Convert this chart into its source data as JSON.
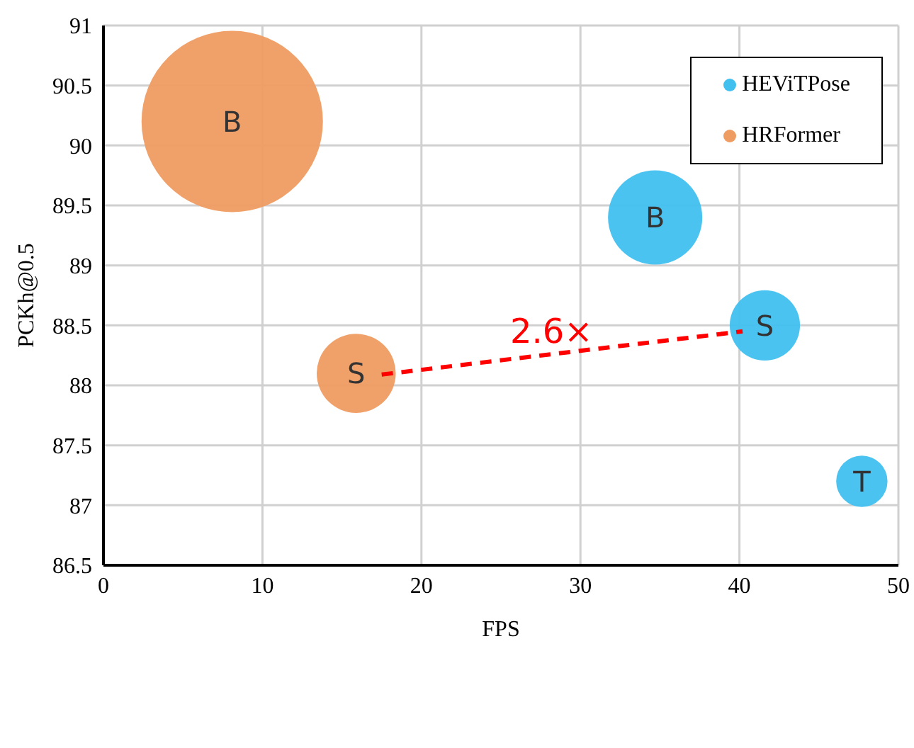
{
  "chart_data": {
    "type": "bubble",
    "xlabel": "FPS",
    "ylabel": "PCKh@0.5",
    "xlim": [
      0,
      50
    ],
    "xticks": [
      0,
      10,
      20,
      30,
      40,
      50
    ],
    "ylim": [
      86.5,
      91
    ],
    "yticks": [
      86.5,
      87,
      87.5,
      88,
      88.5,
      89,
      89.5,
      90,
      90.5,
      91
    ],
    "grid": true,
    "legend": "top right",
    "series": [
      {
        "name": "HEViTPose",
        "color": "#41c0f0",
        "x": [
          34.7,
          41.6,
          47.7
        ],
        "values": [
          89.4,
          88.5,
          87.2
        ],
        "sizes": [
          0.27,
          0.15,
          0.08
        ],
        "value_labels": [
          "B",
          "S",
          "T"
        ]
      },
      {
        "name": "HRFormer",
        "color": "#ef9c62",
        "x": [
          8.1,
          15.9
        ],
        "values": [
          90.2,
          88.1
        ],
        "sizes": [
          1,
          0.19
        ],
        "value_labels": [
          "B",
          "S"
        ]
      },
      {
        "type": "line",
        "color": "#ff0000",
        "line_style": "dashed",
        "x": [
          17.5,
          40.2
        ],
        "values": [
          88.09,
          88.45
        ]
      }
    ],
    "annotations": [
      "2.6×"
    ]
  }
}
